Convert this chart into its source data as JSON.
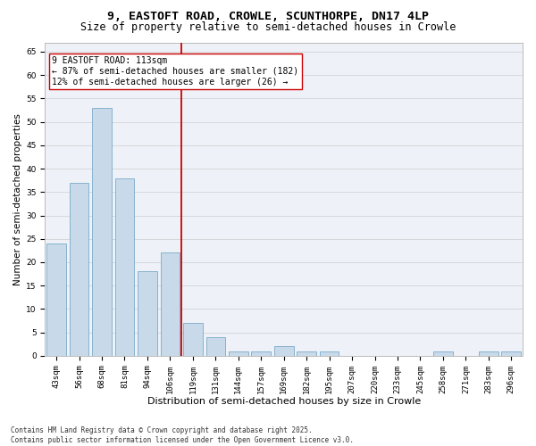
{
  "title1": "9, EASTOFT ROAD, CROWLE, SCUNTHORPE, DN17 4LP",
  "title2": "Size of property relative to semi-detached houses in Crowle",
  "xlabel": "Distribution of semi-detached houses by size in Crowle",
  "ylabel": "Number of semi-detached properties",
  "categories": [
    "43sqm",
    "56sqm",
    "68sqm",
    "81sqm",
    "94sqm",
    "106sqm",
    "119sqm",
    "131sqm",
    "144sqm",
    "157sqm",
    "169sqm",
    "182sqm",
    "195sqm",
    "207sqm",
    "220sqm",
    "233sqm",
    "245sqm",
    "258sqm",
    "271sqm",
    "283sqm",
    "296sqm"
  ],
  "values": [
    24,
    37,
    53,
    38,
    18,
    22,
    7,
    4,
    1,
    1,
    2,
    1,
    1,
    0,
    0,
    0,
    0,
    1,
    0,
    1,
    1
  ],
  "bar_color": "#c8daea",
  "bar_edge_color": "#7aaac8",
  "vline_x_index": 6,
  "vline_color": "#cc0000",
  "annotation_text": "9 EASTOFT ROAD: 113sqm\n← 87% of semi-detached houses are smaller (182)\n12% of semi-detached houses are larger (26) →",
  "annotation_box_color": "#ffffff",
  "annotation_box_edge_color": "#cc0000",
  "ylim": [
    0,
    67
  ],
  "yticks": [
    0,
    5,
    10,
    15,
    20,
    25,
    30,
    35,
    40,
    45,
    50,
    55,
    60,
    65
  ],
  "grid_color": "#cccccc",
  "bg_color": "#eef2f8",
  "footnote": "Contains HM Land Registry data © Crown copyright and database right 2025.\nContains public sector information licensed under the Open Government Licence v3.0.",
  "title1_fontsize": 9.5,
  "title2_fontsize": 8.5,
  "xlabel_fontsize": 8,
  "ylabel_fontsize": 7.5,
  "tick_fontsize": 6.5,
  "annotation_fontsize": 7,
  "footnote_fontsize": 5.5
}
